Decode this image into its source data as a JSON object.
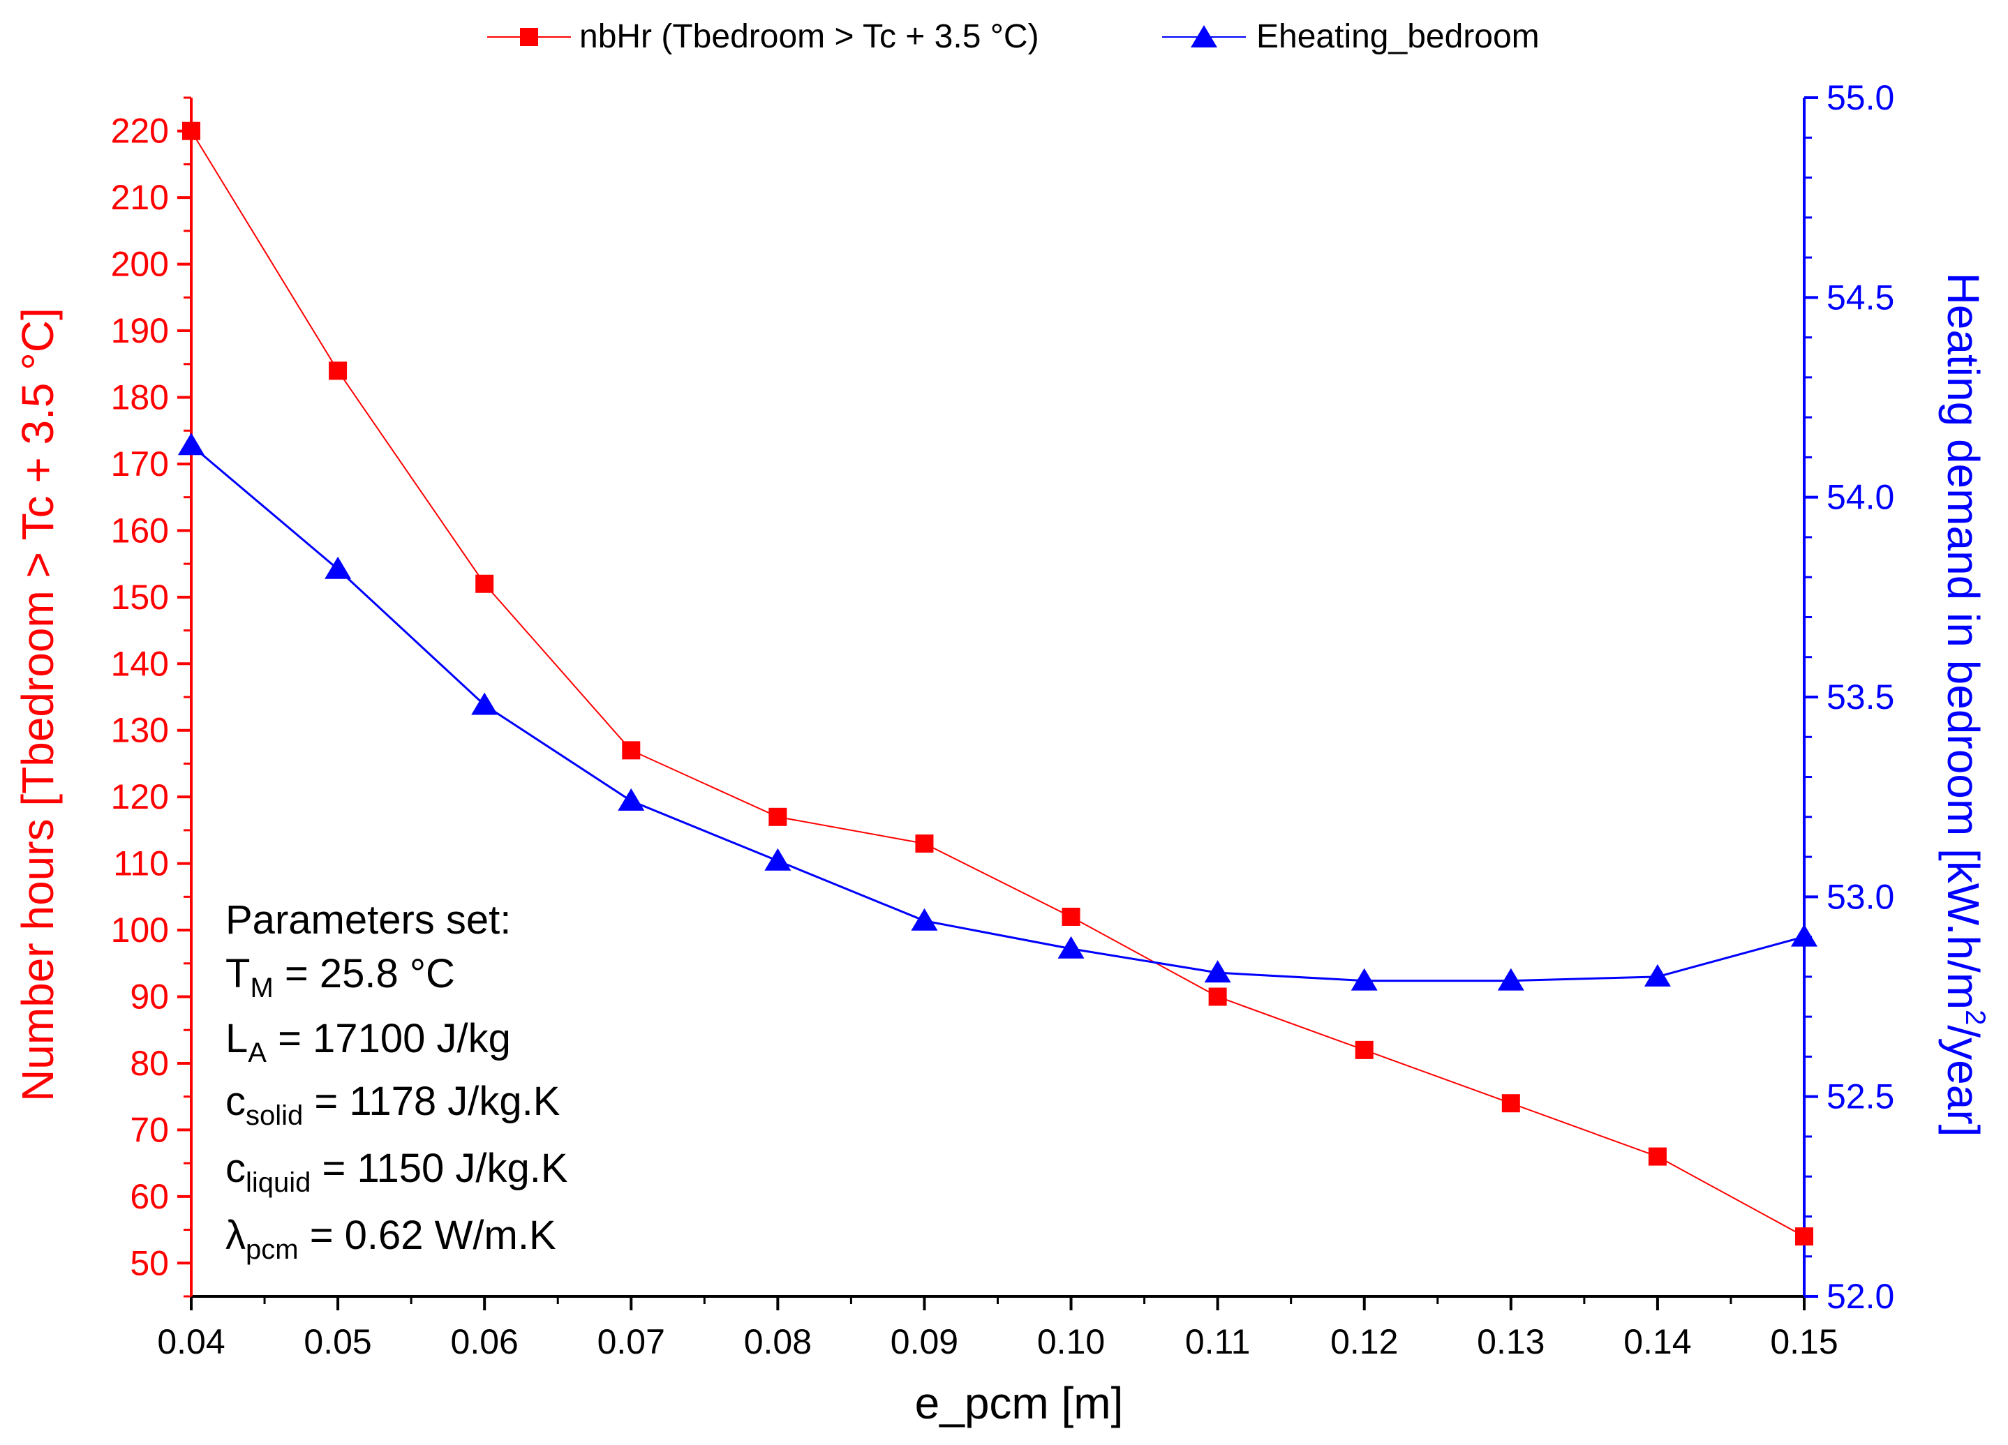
{
  "chart_data": {
    "type": "line",
    "x": [
      0.04,
      0.05,
      0.06,
      0.07,
      0.08,
      0.09,
      0.1,
      0.11,
      0.12,
      0.13,
      0.14,
      0.15
    ],
    "xlabel": "e_pcm [m]",
    "xlim": [
      0.04,
      0.15
    ],
    "xticks": [
      "0.04",
      "0.05",
      "0.06",
      "0.07",
      "0.08",
      "0.09",
      "0.10",
      "0.11",
      "0.12",
      "0.13",
      "0.14",
      "0.15"
    ],
    "y_left": {
      "label": "Number hours [Tbedroom > Tc + 3.5 °C]",
      "ylim": [
        45,
        225
      ],
      "ticks": [
        "50",
        "60",
        "70",
        "80",
        "90",
        "100",
        "110",
        "120",
        "130",
        "140",
        "150",
        "160",
        "170",
        "180",
        "190",
        "200",
        "210",
        "220"
      ],
      "color": "#ff0000"
    },
    "y_right": {
      "label_main": "Heating demand in bedroom [kW.h/m",
      "label_sup": "2",
      "label_end": "/year]",
      "ylim": [
        52.0,
        55.0
      ],
      "ticks": [
        "52.0",
        "52.5",
        "53.0",
        "53.5",
        "54.0",
        "54.5",
        "55.0"
      ],
      "color": "#0000ff"
    },
    "series": [
      {
        "name": "nbHr (Tbedroom > Tc + 3.5 °C)",
        "axis": "left",
        "marker": "square",
        "color": "#ff0000",
        "values": [
          220,
          184,
          152,
          127,
          117,
          113,
          102,
          90,
          82,
          74,
          66,
          54
        ]
      },
      {
        "name": "Eheating_bedroom",
        "axis": "right",
        "marker": "triangle",
        "color": "#0000ff",
        "values": [
          54.13,
          53.82,
          53.48,
          53.24,
          53.09,
          52.94,
          52.87,
          52.81,
          52.79,
          52.79,
          52.8,
          52.9
        ]
      }
    ],
    "legend_position": "top-center",
    "annotation": {
      "title": "Parameters set:",
      "lines": [
        {
          "base": "T",
          "sub": "M",
          "rest": " = 25.8 °C"
        },
        {
          "base": "L",
          "sub": "A",
          "rest": " = 17100 J/kg"
        },
        {
          "base": "c",
          "sub": "solid",
          "rest": " = 1178 J/kg.K"
        },
        {
          "base": "c",
          "sub": "liquid",
          "rest": " = 1150 J/kg.K"
        },
        {
          "base": "λ",
          "sub": "pcm",
          "rest": " = 0.62 W/m.K"
        }
      ]
    }
  }
}
